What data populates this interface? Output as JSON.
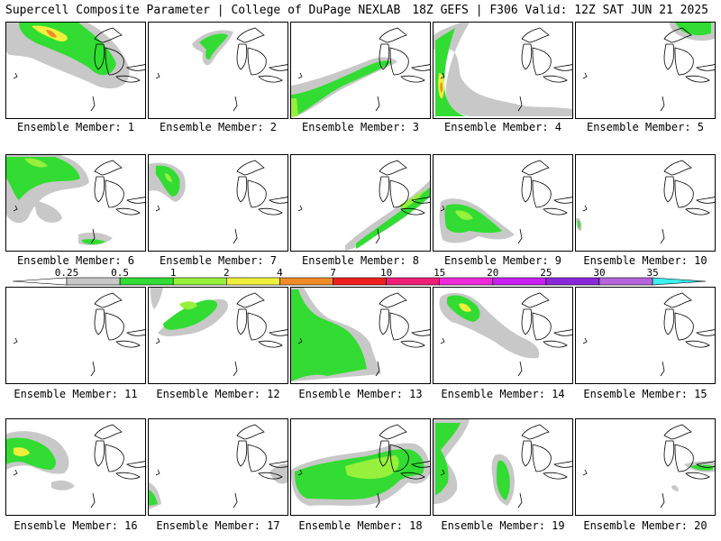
{
  "header": {
    "left_title": "Supercell Composite Parameter | College of DuPage NEXLAB",
    "right_title": "18Z GEFS | F306 Valid: 12Z SAT JUN 21 2025"
  },
  "legend": {
    "ticks": [
      "0.25",
      "0.5",
      "1",
      "2",
      "4",
      "7",
      "10",
      "15",
      "20",
      "25",
      "30",
      "35"
    ],
    "colors": [
      "#c8c8c8",
      "#32dc32",
      "#96f03c",
      "#f0f03c",
      "#f08c28",
      "#f01e1e",
      "#f01e78",
      "#f028dc",
      "#c81ef0",
      "#8c28dc",
      "#b464dc",
      "#3cf0f0"
    ]
  },
  "panels": [
    {
      "label": "Ensemble Member: 1"
    },
    {
      "label": "Ensemble Member: 2"
    },
    {
      "label": "Ensemble Member: 3"
    },
    {
      "label": "Ensemble Member: 4"
    },
    {
      "label": "Ensemble Member: 5"
    },
    {
      "label": "Ensemble Member: 6"
    },
    {
      "label": "Ensemble Member: 7"
    },
    {
      "label": "Ensemble Member: 8"
    },
    {
      "label": "Ensemble Member: 9"
    },
    {
      "label": "Ensemble Member: 10"
    },
    {
      "label": "Ensemble Member: 11"
    },
    {
      "label": "Ensemble Member: 12"
    },
    {
      "label": "Ensemble Member: 13"
    },
    {
      "label": "Ensemble Member: 14"
    },
    {
      "label": "Ensemble Member: 15"
    },
    {
      "label": "Ensemble Member: 16"
    },
    {
      "label": "Ensemble Member: 17"
    },
    {
      "label": "Ensemble Member: 18"
    },
    {
      "label": "Ensemble Member: 19"
    },
    {
      "label": "Ensemble Member: 20"
    }
  ]
}
